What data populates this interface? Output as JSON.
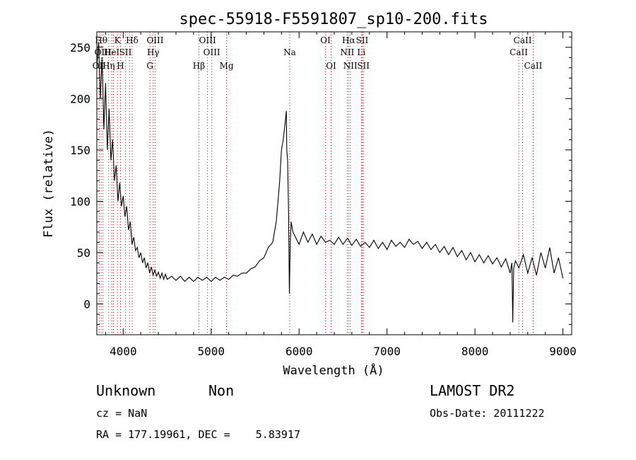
{
  "chart_data": {
    "type": "line",
    "title": "spec-55918-F5591807_sp10-200.fits",
    "xlabel": "Wavelength (Å)",
    "ylabel": "Flux (relative)",
    "xlim": [
      3700,
      9100
    ],
    "ylim": [
      -30,
      265
    ],
    "x_ticks": [
      4000,
      5000,
      6000,
      7000,
      8000,
      9000
    ],
    "y_ticks": [
      0,
      50,
      100,
      150,
      200,
      250
    ],
    "grid": false,
    "line_marker_color": "#e00000",
    "series": [
      {
        "points": [
          [
            3700,
            230
          ],
          [
            3720,
            255
          ],
          [
            3740,
            200
          ],
          [
            3760,
            240
          ],
          [
            3780,
            170
          ],
          [
            3800,
            215
          ],
          [
            3820,
            150
          ],
          [
            3840,
            190
          ],
          [
            3860,
            140
          ],
          [
            3880,
            160
          ],
          [
            3900,
            120
          ],
          [
            3920,
            135
          ],
          [
            3940,
            100
          ],
          [
            3960,
            118
          ],
          [
            3980,
            95
          ],
          [
            4000,
            105
          ],
          [
            4020,
            85
          ],
          [
            4040,
            95
          ],
          [
            4060,
            72
          ],
          [
            4080,
            80
          ],
          [
            4100,
            58
          ],
          [
            4120,
            65
          ],
          [
            4140,
            52
          ],
          [
            4160,
            55
          ],
          [
            4180,
            45
          ],
          [
            4200,
            50
          ],
          [
            4220,
            40
          ],
          [
            4240,
            45
          ],
          [
            4260,
            35
          ],
          [
            4280,
            40
          ],
          [
            4300,
            30
          ],
          [
            4320,
            36
          ],
          [
            4340,
            28
          ],
          [
            4360,
            33
          ],
          [
            4380,
            27
          ],
          [
            4400,
            31
          ],
          [
            4420,
            25
          ],
          [
            4440,
            30
          ],
          [
            4460,
            24
          ],
          [
            4480,
            29
          ],
          [
            4500,
            24
          ],
          [
            4550,
            27
          ],
          [
            4600,
            23
          ],
          [
            4650,
            27
          ],
          [
            4700,
            22
          ],
          [
            4750,
            26
          ],
          [
            4800,
            22
          ],
          [
            4850,
            26
          ],
          [
            4900,
            23
          ],
          [
            4950,
            26
          ],
          [
            5000,
            22
          ],
          [
            5050,
            26
          ],
          [
            5100,
            23
          ],
          [
            5150,
            26
          ],
          [
            5200,
            24
          ],
          [
            5250,
            28
          ],
          [
            5300,
            27
          ],
          [
            5350,
            30
          ],
          [
            5400,
            30
          ],
          [
            5450,
            34
          ],
          [
            5500,
            36
          ],
          [
            5550,
            42
          ],
          [
            5600,
            45
          ],
          [
            5650,
            55
          ],
          [
            5700,
            60
          ],
          [
            5720,
            70
          ],
          [
            5740,
            80
          ],
          [
            5760,
            100
          ],
          [
            5780,
            120
          ],
          [
            5800,
            150
          ],
          [
            5820,
            160
          ],
          [
            5840,
            175
          ],
          [
            5855,
            188
          ],
          [
            5860,
            150
          ],
          [
            5870,
            140
          ],
          [
            5880,
            90
          ],
          [
            5890,
            10
          ],
          [
            5900,
            60
          ],
          [
            5910,
            80
          ],
          [
            5930,
            70
          ],
          [
            5960,
            65
          ],
          [
            6000,
            58
          ],
          [
            6050,
            70
          ],
          [
            6100,
            60
          ],
          [
            6150,
            68
          ],
          [
            6200,
            58
          ],
          [
            6250,
            66
          ],
          [
            6300,
            60
          ],
          [
            6350,
            62
          ],
          [
            6400,
            58
          ],
          [
            6450,
            65
          ],
          [
            6500,
            58
          ],
          [
            6550,
            64
          ],
          [
            6600,
            57
          ],
          [
            6650,
            63
          ],
          [
            6700,
            56
          ],
          [
            6750,
            60
          ],
          [
            6800,
            55
          ],
          [
            6850,
            62
          ],
          [
            6900,
            54
          ],
          [
            6950,
            60
          ],
          [
            7000,
            53
          ],
          [
            7050,
            62
          ],
          [
            7100,
            56
          ],
          [
            7150,
            60
          ],
          [
            7200,
            55
          ],
          [
            7250,
            63
          ],
          [
            7300,
            58
          ],
          [
            7350,
            61
          ],
          [
            7400,
            54
          ],
          [
            7450,
            60
          ],
          [
            7500,
            53
          ],
          [
            7550,
            58
          ],
          [
            7600,
            50
          ],
          [
            7650,
            56
          ],
          [
            7700,
            48
          ],
          [
            7750,
            55
          ],
          [
            7800,
            46
          ],
          [
            7850,
            52
          ],
          [
            7900,
            43
          ],
          [
            7950,
            50
          ],
          [
            8000,
            41
          ],
          [
            8050,
            48
          ],
          [
            8100,
            40
          ],
          [
            8150,
            47
          ],
          [
            8200,
            39
          ],
          [
            8250,
            45
          ],
          [
            8300,
            36
          ],
          [
            8350,
            44
          ],
          [
            8400,
            30
          ],
          [
            8420,
            40
          ],
          [
            8430,
            -18
          ],
          [
            8440,
            35
          ],
          [
            8460,
            42
          ],
          [
            8500,
            35
          ],
          [
            8550,
            48
          ],
          [
            8600,
            30
          ],
          [
            8650,
            45
          ],
          [
            8700,
            28
          ],
          [
            8750,
            50
          ],
          [
            8800,
            35
          ],
          [
            8850,
            55
          ],
          [
            8900,
            30
          ],
          [
            8950,
            45
          ],
          [
            9000,
            25
          ]
        ]
      }
    ],
    "line_markers": [
      {
        "x": 3727,
        "label": "OII",
        "row": 2
      },
      {
        "x": 3750,
        "label": "Hθ",
        "row": 0
      },
      {
        "x": 3770,
        "label": "OIII",
        "row": 1
      },
      {
        "x": 3835,
        "label": "Hη",
        "row": 2
      },
      {
        "x": 3869,
        "label": "HeI",
        "row": 1
      },
      {
        "x": 3889,
        "label": "",
        "row": 0
      },
      {
        "x": 3934,
        "label": "K",
        "row": 0
      },
      {
        "x": 3969,
        "label": "H",
        "row": 2
      },
      {
        "x": 4026,
        "label": "SII",
        "row": 1
      },
      {
        "x": 4072,
        "label": "",
        "row": 0
      },
      {
        "x": 4102,
        "label": "Hδ",
        "row": 0
      },
      {
        "x": 4304,
        "label": "G",
        "row": 2
      },
      {
        "x": 4341,
        "label": "Hγ",
        "row": 1
      },
      {
        "x": 4363,
        "label": "OIII",
        "row": 0
      },
      {
        "x": 4861,
        "label": "Hβ",
        "row": 2
      },
      {
        "x": 4959,
        "label": "OIII",
        "row": 0
      },
      {
        "x": 5007,
        "label": "OIII",
        "row": 1
      },
      {
        "x": 5175,
        "label": "Mg",
        "row": 2
      },
      {
        "x": 5893,
        "label": "Na",
        "row": 1
      },
      {
        "x": 6300,
        "label": "OI",
        "row": 0
      },
      {
        "x": 6364,
        "label": "OI",
        "row": 2
      },
      {
        "x": 6548,
        "label": "NII",
        "row": 1
      },
      {
        "x": 6563,
        "label": "Hα",
        "row": 0
      },
      {
        "x": 6583,
        "label": "NII",
        "row": 2
      },
      {
        "x": 6708,
        "label": "Li",
        "row": 1
      },
      {
        "x": 6717,
        "label": "SII",
        "row": 0
      },
      {
        "x": 6731,
        "label": "SII",
        "row": 2
      },
      {
        "x": 8498,
        "label": "CaII",
        "row": 1
      },
      {
        "x": 8542,
        "label": "CaII",
        "row": 0
      },
      {
        "x": 8662,
        "label": "CaII",
        "row": 2
      }
    ]
  },
  "info": {
    "classification": "Unknown",
    "subclass": "Non",
    "survey": "LAMOST DR2",
    "cz": "cz = NaN",
    "obs_date": "Obs-Date: 20111222",
    "coords": "RA = 177.19961, DEC =    5.83917"
  }
}
